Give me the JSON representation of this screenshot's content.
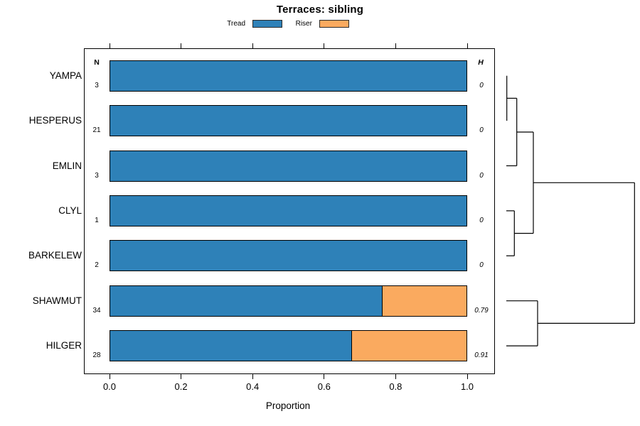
{
  "chart_data": {
    "type": "bar",
    "orientation": "horizontal_stacked",
    "title": "Terraces: sibling",
    "xlabel": "Proportion",
    "xlim": [
      0,
      1
    ],
    "x_ticks": [
      0.0,
      0.2,
      0.4,
      0.6,
      0.8,
      1.0
    ],
    "x_tick_labels": [
      "0.0",
      "0.2",
      "0.4",
      "0.6",
      "0.8",
      "1.0"
    ],
    "grid": "off",
    "legend_position": "top",
    "categories": [
      "YAMPA",
      "HESPERUS",
      "EMLIN",
      "CLYL",
      "BARKELEW",
      "SHAWMUT",
      "HILGER"
    ],
    "series": [
      {
        "name": "Tread",
        "color": "#2E81B8",
        "values": [
          1,
          1,
          1,
          1,
          1,
          0.765,
          0.679
        ]
      },
      {
        "name": "Riser",
        "color": "#FAAA5F",
        "values": [
          0,
          0,
          0,
          0,
          0,
          0.235,
          0.321
        ]
      }
    ],
    "n_header": "N",
    "h_header": "H",
    "n_values": [
      "3",
      "21",
      "3",
      "1",
      "2",
      "34",
      "28"
    ],
    "h_values": [
      "0",
      "0",
      "0",
      "0",
      "0",
      "0.79",
      "0.91"
    ]
  },
  "dendrogram": {
    "leaf_order": [
      "YAMPA",
      "HESPERUS",
      "EMLIN",
      "CLYL",
      "BARKELEW",
      "SHAWMUT",
      "HILGER"
    ],
    "structure": "((((YAMPA,HESPERUS),EMLIN),(CLYL,BARKELEW)),(SHAWMUT,HILGER))",
    "line_color": "#000000",
    "segments": [
      [
        712.7,
        106.7,
        712.7,
        170.1
      ],
      [
        712.7,
        138.4,
        726.7,
        138.4
      ],
      [
        726.7,
        138.4,
        726.7,
        233.5
      ],
      [
        712.0,
        233.5,
        726.7,
        233.5
      ],
      [
        726.7,
        186.0,
        750.0,
        186.0
      ],
      [
        750.0,
        186.0,
        750.0,
        328.6
      ],
      [
        712.0,
        296.9,
        723.3,
        296.9
      ],
      [
        723.3,
        296.9,
        723.3,
        360.3
      ],
      [
        712.0,
        360.3,
        723.3,
        360.3
      ],
      [
        723.3,
        328.6,
        750.0,
        328.6
      ],
      [
        750.0,
        257.3,
        892.3,
        257.3
      ],
      [
        712.0,
        423.7,
        756.0,
        423.7
      ],
      [
        756.0,
        423.7,
        756.0,
        487.1
      ],
      [
        712.0,
        487.1,
        756.0,
        487.1
      ],
      [
        756.0,
        455.4,
        892.3,
        455.4
      ],
      [
        892.3,
        257.3,
        892.3,
        455.4
      ]
    ]
  }
}
